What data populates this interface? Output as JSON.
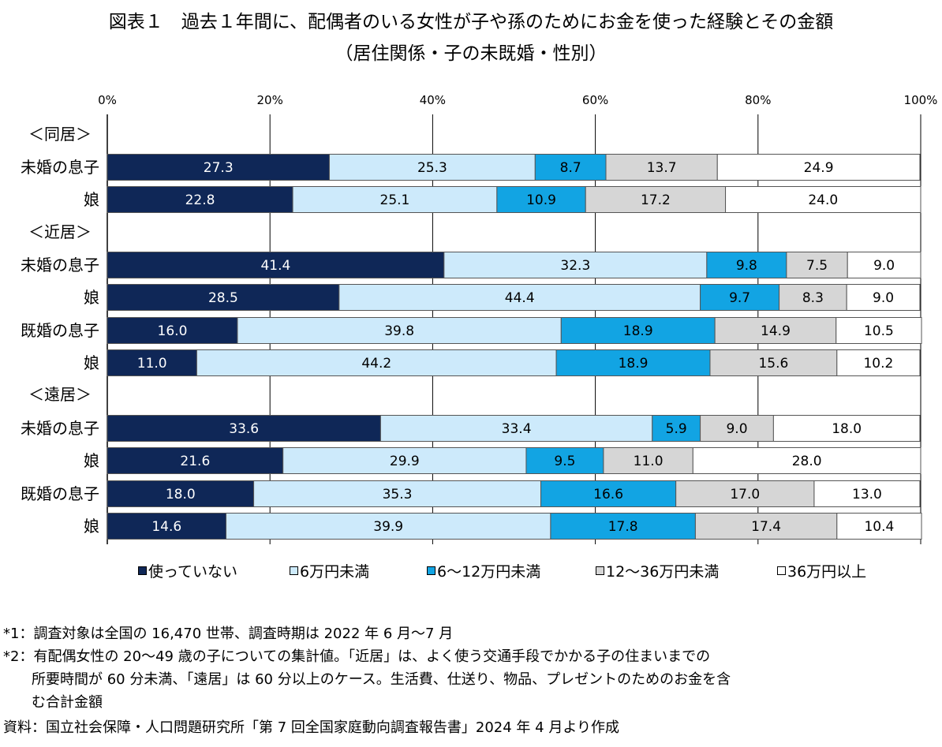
{
  "title": "図表１　過去１年間に、配偶者のいる女性が子や孫のためにお金を使った経験とその金額",
  "subtitle": "（居住関係・子の未既婚・性別）",
  "colors": {
    "series": [
      "#0f2757",
      "#cdeafb",
      "#12a4e3",
      "#d6d6d6",
      "#ffffff"
    ],
    "border": "#555555"
  },
  "chart_data": {
    "type": "bar",
    "orientation": "horizontal",
    "stacked": true,
    "xlim": [
      0,
      100
    ],
    "xticks": [
      "0%",
      "20%",
      "40%",
      "60%",
      "80%",
      "100%"
    ],
    "grid": true,
    "legend_position": "bottom",
    "group_labels": [
      "＜同居＞",
      "＜近居＞",
      "＜遠居＞"
    ],
    "categories": [
      {
        "group": "＜同居＞",
        "label": "未婚の息子"
      },
      {
        "group": "＜同居＞",
        "label": "娘"
      },
      {
        "group": "＜近居＞",
        "label": "未婚の息子"
      },
      {
        "group": "＜近居＞",
        "label": "娘"
      },
      {
        "group": "＜近居＞",
        "label": "既婚の息子"
      },
      {
        "group": "＜近居＞",
        "label": "娘"
      },
      {
        "group": "＜遠居＞",
        "label": "未婚の息子"
      },
      {
        "group": "＜遠居＞",
        "label": "娘"
      },
      {
        "group": "＜遠居＞",
        "label": "既婚の息子"
      },
      {
        "group": "＜遠居＞",
        "label": "娘"
      }
    ],
    "series": [
      {
        "name": "使っていない",
        "values": [
          27.3,
          22.8,
          41.4,
          28.5,
          16.0,
          11.0,
          33.6,
          21.6,
          18.0,
          14.6
        ]
      },
      {
        "name": "6万円未満",
        "values": [
          25.3,
          25.1,
          32.3,
          44.4,
          39.8,
          44.2,
          33.4,
          29.9,
          35.3,
          39.9
        ]
      },
      {
        "name": "6～12万円未満",
        "values": [
          8.7,
          10.9,
          9.8,
          9.7,
          18.9,
          18.9,
          5.9,
          9.5,
          16.6,
          17.8
        ]
      },
      {
        "name": "12～36万円未満",
        "values": [
          13.7,
          17.2,
          7.5,
          8.3,
          14.9,
          15.6,
          9.0,
          11.0,
          17.0,
          17.4
        ]
      },
      {
        "name": "36万円以上",
        "values": [
          24.9,
          24.0,
          9.0,
          9.0,
          10.5,
          10.2,
          18.0,
          28.0,
          13.0,
          10.4
        ]
      }
    ]
  },
  "legend": [
    "使っていない",
    "6万円未満",
    "6～12万円未満",
    "12～36万円未満",
    "36万円以上"
  ],
  "notes": {
    "note1": "*1：調査対象は全国の 16,470 世帯、調査時期は 2022 年 6 月～7 月",
    "note2_line1": "*2：有配偶女性の 20～49 歳の子についての集計値。「近居」は、よく使う交通手段でかかる子の住まいまでの",
    "note2_line2": "所要時間が 60 分未満、「遠居」は 60 分以上のケース。生活費、仕送り、物品、プレゼントのためのお金を含",
    "note2_line3": "む合計金額",
    "source": "資料：国立社会保障・人口問題研究所「第 7 回全国家庭動向調査報告書」2024 年 4 月より作成"
  }
}
